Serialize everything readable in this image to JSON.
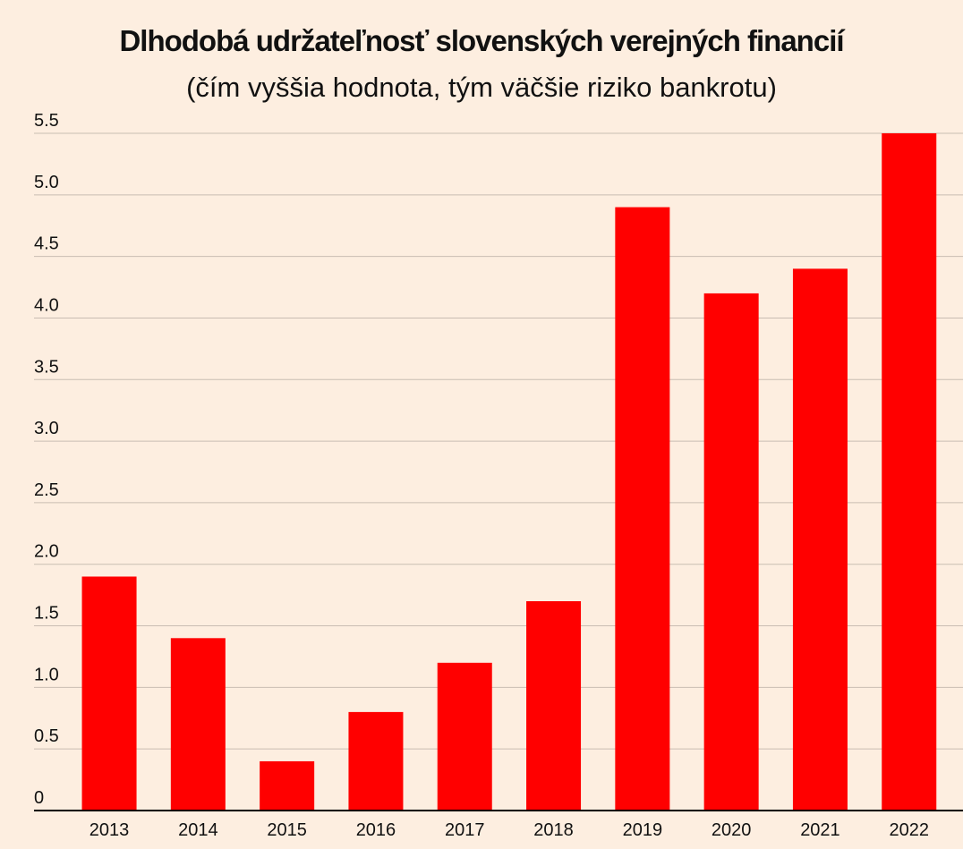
{
  "chart_data": {
    "type": "bar",
    "title": "Dlhodobá udržateľnosť slovenských verejných financií",
    "subtitle": "(čím vyššia hodnota, tým väčšie riziko bankrotu)",
    "categories": [
      "2013",
      "2014",
      "2015",
      "2016",
      "2017",
      "2018",
      "2019",
      "2020",
      "2021",
      "2022"
    ],
    "values": [
      1.9,
      1.4,
      0.4,
      0.8,
      1.2,
      1.7,
      4.9,
      4.2,
      4.4,
      5.5
    ],
    "color": "#ff0000",
    "ylim": [
      0,
      5.5
    ],
    "yticks": [
      0,
      0.5,
      {
        "value": 1,
        "label": "1.0"
      },
      1.5,
      {
        "value": 2,
        "label": "2.0"
      },
      2.5,
      {
        "value": 3,
        "label": "3.0"
      },
      3.5,
      {
        "value": 4,
        "label": "4.0"
      },
      4.5,
      {
        "value": 5,
        "label": "5.0"
      },
      5.5
    ],
    "grid": true
  }
}
